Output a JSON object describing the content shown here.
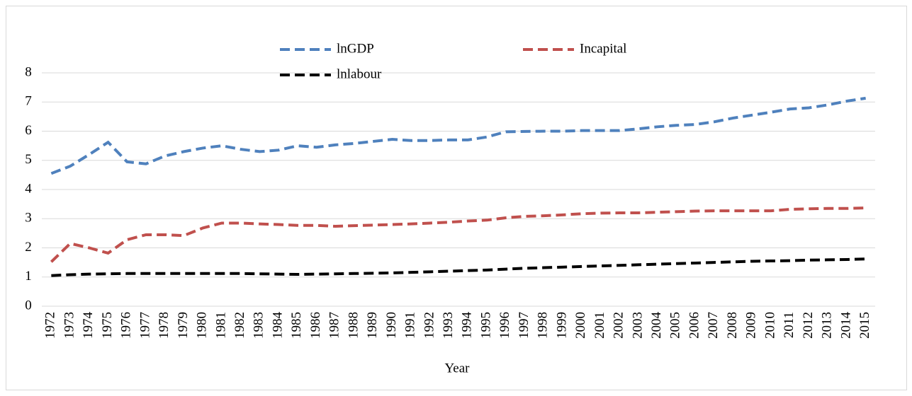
{
  "chart_data": {
    "type": "line",
    "x_label": "Year",
    "categories": [
      "1972",
      "1973",
      "1974",
      "1975",
      "1976",
      "1977",
      "1978",
      "1979",
      "1980",
      "1981",
      "1982",
      "1983",
      "1984",
      "1985",
      "1986",
      "1987",
      "1988",
      "1989",
      "1990",
      "1991",
      "1992",
      "1993",
      "1994",
      "1995",
      "1996",
      "1997",
      "1998",
      "1999",
      "2000",
      "2001",
      "2002",
      "2003",
      "2004",
      "2005",
      "2006",
      "2007",
      "2008",
      "2009",
      "2010",
      "2011",
      "2012",
      "2013",
      "2014",
      "2015"
    ],
    "series": [
      {
        "name": "lnGDP",
        "color": "#4f81bd",
        "values": [
          4.55,
          4.8,
          5.2,
          5.62,
          4.95,
          4.88,
          5.15,
          5.3,
          5.42,
          5.5,
          5.38,
          5.3,
          5.35,
          5.5,
          5.45,
          5.53,
          5.58,
          5.65,
          5.72,
          5.68,
          5.68,
          5.7,
          5.7,
          5.8,
          5.98,
          5.99,
          6.0,
          6.0,
          6.02,
          6.02,
          6.02,
          6.08,
          6.15,
          6.2,
          6.23,
          6.32,
          6.45,
          6.55,
          6.65,
          6.76,
          6.8,
          6.9,
          7.03,
          7.13
        ]
      },
      {
        "name": "Incapital",
        "color": "#c0504d",
        "values": [
          1.52,
          2.15,
          2.0,
          1.82,
          2.28,
          2.45,
          2.45,
          2.42,
          2.68,
          2.85,
          2.85,
          2.82,
          2.8,
          2.77,
          2.77,
          2.74,
          2.76,
          2.78,
          2.8,
          2.82,
          2.85,
          2.88,
          2.92,
          2.95,
          3.03,
          3.08,
          3.1,
          3.13,
          3.17,
          3.19,
          3.2,
          3.2,
          3.22,
          3.24,
          3.26,
          3.27,
          3.27,
          3.27,
          3.27,
          3.32,
          3.34,
          3.35,
          3.35,
          3.37
        ]
      },
      {
        "name": "lnlabour",
        "color": "#000000",
        "values": [
          1.05,
          1.08,
          1.1,
          1.11,
          1.12,
          1.12,
          1.12,
          1.12,
          1.12,
          1.12,
          1.12,
          1.11,
          1.1,
          1.09,
          1.1,
          1.11,
          1.12,
          1.13,
          1.14,
          1.16,
          1.18,
          1.2,
          1.22,
          1.24,
          1.27,
          1.3,
          1.32,
          1.34,
          1.36,
          1.38,
          1.4,
          1.42,
          1.44,
          1.46,
          1.48,
          1.5,
          1.52,
          1.54,
          1.55,
          1.56,
          1.58,
          1.59,
          1.6,
          1.62
        ]
      }
    ],
    "ylim": [
      0,
      8
    ],
    "yticks": [
      0,
      1,
      2,
      3,
      4,
      5,
      6,
      7,
      8
    ],
    "grid": true,
    "legend": "top",
    "line_style": "dashed"
  }
}
